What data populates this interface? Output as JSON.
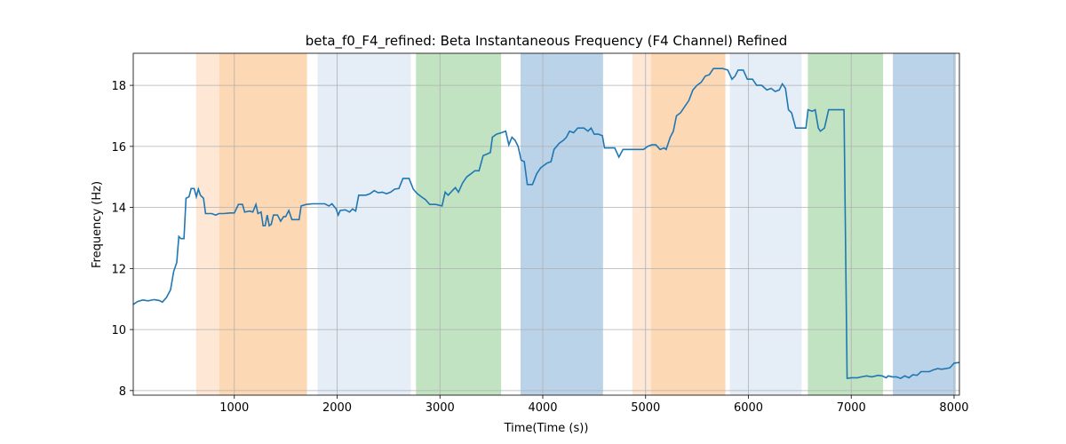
{
  "chart_data": {
    "type": "line",
    "title": "beta_f0_F4_refined: Beta Instantaneous Frequency (F4 Channel) Refined",
    "xlabel": "Time(Time (s))",
    "ylabel": "Frequency (Hz)",
    "xlim": [
      17,
      8052
    ],
    "ylim": [
      7.85,
      19.05
    ],
    "xticks": [
      1000,
      2000,
      3000,
      4000,
      5000,
      6000,
      7000,
      8000
    ],
    "yticks": [
      8,
      10,
      12,
      14,
      16,
      18
    ],
    "grid": true,
    "spans": [
      {
        "start": 629,
        "end": 853,
        "color": "#fee8d5"
      },
      {
        "start": 853,
        "end": 1707,
        "color": "#fdd8b5"
      },
      {
        "start": 1810,
        "end": 2716,
        "color": "#e5edf7"
      },
      {
        "start": 2767,
        "end": 3595,
        "color": "#c1e3c1"
      },
      {
        "start": 3784,
        "end": 4586,
        "color": "#bad3e8"
      },
      {
        "start": 4871,
        "end": 5052,
        "color": "#fee8d5"
      },
      {
        "start": 5052,
        "end": 5776,
        "color": "#fdd8b5"
      },
      {
        "start": 5819,
        "end": 6517,
        "color": "#e5edf7"
      },
      {
        "start": 6578,
        "end": 7310,
        "color": "#c1e3c1"
      },
      {
        "start": 7405,
        "end": 8017,
        "color": "#bad3e8"
      }
    ],
    "series": [
      {
        "color": "#1f77b4",
        "x": [
          17,
          60,
          110,
          160,
          220,
          270,
          300,
          340,
          380,
          410,
          440,
          460,
          480,
          510,
          530,
          560,
          580,
          610,
          630,
          650,
          670,
          700,
          720,
          780,
          820,
          850,
          900,
          960,
          1000,
          1040,
          1080,
          1100,
          1150,
          1180,
          1210,
          1230,
          1260,
          1280,
          1300,
          1320,
          1340,
          1360,
          1380,
          1420,
          1450,
          1480,
          1500,
          1530,
          1560,
          1600,
          1630,
          1650,
          1700,
          1760,
          1820,
          1880,
          1920,
          1950,
          1990,
          2010,
          2030,
          2080,
          2120,
          2150,
          2180,
          2210,
          2280,
          2320,
          2360,
          2400,
          2440,
          2480,
          2520,
          2560,
          2600,
          2640,
          2700,
          2740,
          2780,
          2820,
          2860,
          2900,
          2960,
          3020,
          3050,
          3080,
          3120,
          3150,
          3180,
          3220,
          3260,
          3300,
          3340,
          3380,
          3420,
          3460,
          3490,
          3510,
          3550,
          3600,
          3640,
          3670,
          3700,
          3730,
          3760,
          3790,
          3820,
          3850,
          3900,
          3940,
          3980,
          4040,
          4080,
          4110,
          4160,
          4200,
          4230,
          4260,
          4300,
          4340,
          4400,
          4440,
          4470,
          4500,
          4540,
          4580,
          4600,
          4700,
          4740,
          4780,
          4900,
          4980,
          5020,
          5060,
          5100,
          5140,
          5180,
          5200,
          5240,
          5270,
          5300,
          5340,
          5380,
          5420,
          5460,
          5500,
          5540,
          5580,
          5620,
          5660,
          5750,
          5800,
          5840,
          5870,
          5900,
          5950,
          5990,
          6040,
          6080,
          6130,
          6180,
          6220,
          6260,
          6300,
          6330,
          6360,
          6390,
          6420,
          6460,
          6520,
          6560,
          6580,
          6620,
          6650,
          6680,
          6700,
          6740,
          6780,
          6830,
          6930,
          6960,
          7000,
          7060,
          7100,
          7150,
          7200,
          7260,
          7300,
          7340,
          7360,
          7400,
          7440,
          7480,
          7520,
          7560,
          7600,
          7640,
          7680,
          7760,
          7800,
          7840,
          7880,
          7920,
          7960,
          8000,
          8052
        ],
        "values": [
          10.82,
          10.92,
          10.97,
          10.94,
          10.98,
          10.95,
          10.9,
          11.05,
          11.3,
          11.9,
          12.2,
          13.05,
          12.98,
          12.98,
          14.3,
          14.35,
          14.62,
          14.62,
          14.35,
          14.6,
          14.4,
          14.3,
          13.8,
          13.8,
          13.75,
          13.8,
          13.8,
          13.82,
          13.82,
          14.1,
          14.1,
          13.85,
          13.88,
          13.85,
          14.1,
          13.8,
          13.85,
          13.4,
          13.4,
          13.75,
          13.4,
          13.45,
          13.75,
          13.75,
          13.55,
          13.7,
          13.7,
          13.9,
          13.6,
          13.6,
          13.6,
          14.05,
          14.1,
          14.12,
          14.12,
          14.12,
          14.05,
          14.12,
          13.95,
          13.75,
          13.9,
          13.92,
          13.85,
          13.95,
          13.88,
          14.4,
          14.4,
          14.45,
          14.55,
          14.48,
          14.5,
          14.45,
          14.5,
          14.6,
          14.62,
          14.95,
          14.95,
          14.6,
          14.45,
          14.35,
          14.25,
          14.1,
          14.1,
          14.05,
          14.5,
          14.4,
          14.55,
          14.65,
          14.5,
          14.8,
          15.0,
          15.1,
          15.2,
          15.2,
          15.7,
          15.75,
          15.8,
          16.3,
          16.4,
          16.45,
          16.5,
          16.05,
          16.3,
          16.2,
          16.0,
          15.55,
          15.5,
          14.75,
          14.75,
          15.1,
          15.3,
          15.45,
          15.5,
          15.9,
          16.1,
          16.2,
          16.3,
          16.5,
          16.45,
          16.6,
          16.6,
          16.5,
          16.6,
          16.4,
          16.4,
          16.35,
          15.95,
          15.95,
          15.65,
          15.9,
          15.9,
          15.9,
          16.0,
          16.05,
          16.05,
          15.9,
          15.95,
          15.9,
          16.3,
          16.5,
          17.0,
          17.1,
          17.3,
          17.5,
          17.85,
          18.0,
          18.1,
          18.3,
          18.35,
          18.55,
          18.55,
          18.5,
          18.2,
          18.3,
          18.5,
          18.5,
          18.2,
          18.2,
          18.0,
          18.0,
          17.85,
          17.9,
          17.8,
          17.85,
          18.05,
          17.9,
          17.2,
          17.1,
          16.6,
          16.6,
          16.6,
          17.2,
          17.15,
          17.2,
          16.6,
          16.5,
          16.6,
          17.2,
          17.2,
          17.2,
          8.4,
          8.42,
          8.42,
          8.45,
          8.48,
          8.45,
          8.5,
          8.48,
          8.42,
          8.48,
          8.45,
          8.45,
          8.4,
          8.48,
          8.42,
          8.52,
          8.5,
          8.62,
          8.62,
          8.68,
          8.72,
          8.7,
          8.72,
          8.75,
          8.9,
          8.92
        ]
      }
    ]
  }
}
